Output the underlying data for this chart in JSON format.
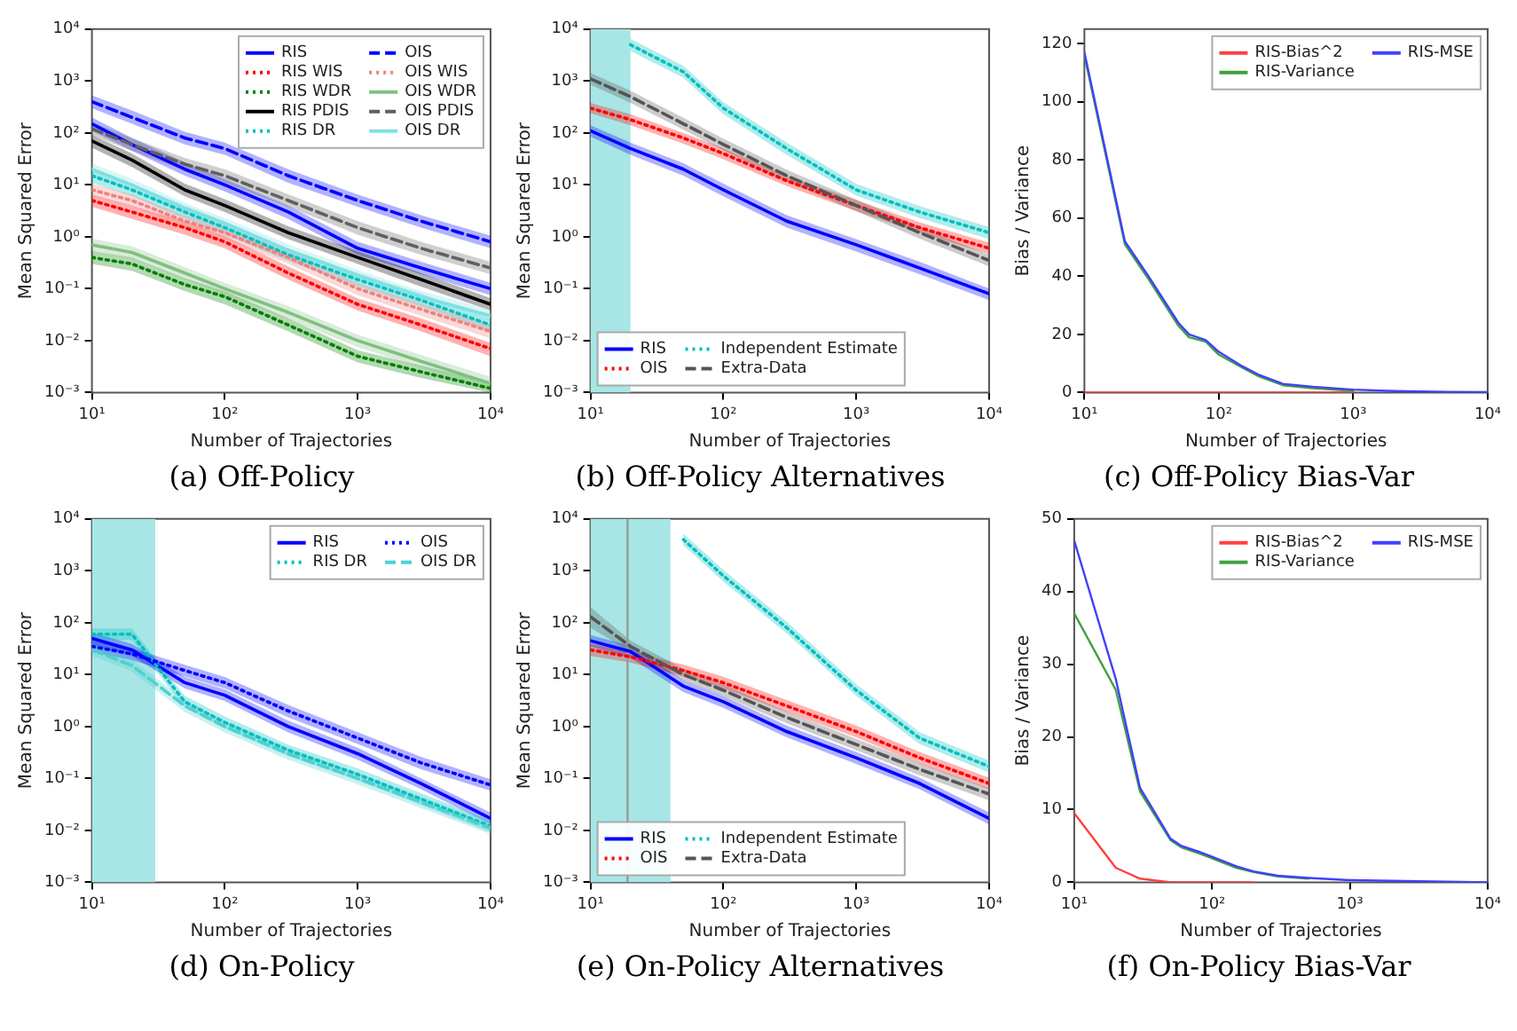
{
  "chart_data": [
    {
      "type": "line",
      "title": "(a) Off-Policy",
      "xlabel": "Number of Trajectories",
      "ylabel": "Mean Squared Error",
      "log": "xy",
      "legend": "top right",
      "xlim": [
        10,
        10000
      ],
      "ylim": [
        0.001,
        10000
      ],
      "xticks": [
        {
          "value": 10,
          "label": "10¹"
        },
        {
          "value": 100,
          "label": "10²"
        },
        {
          "value": 1000,
          "label": "10³"
        },
        {
          "value": 10000,
          "label": "10⁴"
        }
      ],
      "yticks": [
        {
          "value": 0.001,
          "label": "10⁻³"
        },
        {
          "value": 0.01,
          "label": "10⁻²"
        },
        {
          "value": 0.1,
          "label": "10⁻¹"
        },
        {
          "value": 1,
          "label": "10⁰"
        },
        {
          "value": 10,
          "label": "10¹"
        },
        {
          "value": 100,
          "label": "10²"
        },
        {
          "value": 1000,
          "label": "10³"
        },
        {
          "value": 10000,
          "label": "10⁴"
        }
      ],
      "x": [
        10,
        20,
        50,
        100,
        300,
        1000,
        3000,
        10000
      ],
      "series": [
        {
          "name": "RIS",
          "color": "#0000ff",
          "line_style": "solid",
          "values": [
            150,
            60,
            20,
            10,
            3,
            0.6,
            0.25,
            0.1
          ],
          "lower": [
            110,
            45,
            15,
            7.5,
            2.2,
            0.45,
            0.19,
            0.075
          ],
          "upper": [
            200,
            80,
            27,
            13,
            4,
            0.8,
            0.33,
            0.13
          ]
        },
        {
          "name": "RIS WIS",
          "color": "#ff0000",
          "line_style": "dotted",
          "values": [
            5,
            3,
            1.5,
            0.8,
            0.2,
            0.05,
            0.02,
            0.007
          ],
          "lower": [
            3.8,
            2.2,
            1.1,
            0.6,
            0.15,
            0.038,
            0.015,
            0.005
          ],
          "upper": [
            6.5,
            4,
            2,
            1.05,
            0.27,
            0.065,
            0.027,
            0.009
          ]
        },
        {
          "name": "RIS WDR",
          "color": "#008000",
          "line_style": "dotted",
          "values": [
            0.4,
            0.3,
            0.12,
            0.07,
            0.02,
            0.005,
            0.0025,
            0.0012
          ],
          "lower": [
            0.3,
            0.22,
            0.09,
            0.05,
            0.015,
            0.0038,
            0.0019,
            0.001
          ],
          "upper": [
            0.53,
            0.4,
            0.16,
            0.09,
            0.027,
            0.0065,
            0.0033,
            0.0016
          ]
        },
        {
          "name": "RIS PDIS",
          "color": "#000000",
          "line_style": "solid",
          "values": [
            70,
            30,
            8,
            4,
            1.2,
            0.4,
            0.15,
            0.05
          ],
          "lower": [
            52,
            22,
            6,
            3,
            0.9,
            0.3,
            0.11,
            0.038
          ],
          "upper": [
            92,
            40,
            10.5,
            5.3,
            1.6,
            0.53,
            0.2,
            0.066
          ]
        },
        {
          "name": "RIS DR",
          "color": "#00bfbf",
          "line_style": "dotted",
          "values": [
            15,
            8,
            3,
            1.5,
            0.45,
            0.15,
            0.06,
            0.02
          ],
          "lower": [
            11,
            6,
            2.2,
            1.1,
            0.34,
            0.11,
            0.045,
            0.015
          ],
          "upper": [
            20,
            10.5,
            4,
            2,
            0.6,
            0.2,
            0.08,
            0.027
          ]
        },
        {
          "name": "OIS",
          "color": "#0000ff",
          "line_style": "dashed",
          "values": [
            400,
            200,
            80,
            50,
            15,
            5,
            2,
            0.8
          ],
          "lower": [
            300,
            150,
            60,
            38,
            11,
            3.8,
            1.5,
            0.6
          ],
          "upper": [
            530,
            270,
            105,
            65,
            20,
            6.5,
            2.6,
            1.05
          ]
        },
        {
          "name": "OIS WIS",
          "color": "#f08080",
          "line_style": "dotted",
          "values": [
            8,
            5,
            2,
            1.2,
            0.4,
            0.1,
            0.04,
            0.015
          ],
          "lower": [
            6,
            3.8,
            1.5,
            0.9,
            0.3,
            0.075,
            0.03,
            0.011
          ],
          "upper": [
            10.5,
            6.5,
            2.6,
            1.6,
            0.53,
            0.13,
            0.053,
            0.02
          ]
        },
        {
          "name": "OIS WDR",
          "color": "#80c080",
          "line_style": "solid",
          "values": [
            0.7,
            0.5,
            0.2,
            0.1,
            0.035,
            0.01,
            0.004,
            0.0015
          ],
          "lower": [
            0.52,
            0.38,
            0.15,
            0.075,
            0.026,
            0.0075,
            0.003,
            0.0011
          ],
          "upper": [
            0.92,
            0.66,
            0.26,
            0.13,
            0.046,
            0.013,
            0.0053,
            0.002
          ]
        },
        {
          "name": "OIS PDIS",
          "color": "#606060",
          "line_style": "dashed",
          "values": [
            120,
            60,
            25,
            15,
            5,
            1.5,
            0.6,
            0.25
          ],
          "lower": [
            90,
            45,
            19,
            11,
            3.8,
            1.1,
            0.45,
            0.19
          ],
          "upper": [
            160,
            80,
            33,
            20,
            6.6,
            2,
            0.8,
            0.33
          ]
        },
        {
          "name": "OIS DR",
          "color": "#80e0e0",
          "line_style": "solid",
          "values": [
            20,
            10,
            3.5,
            1.8,
            0.55,
            0.18,
            0.07,
            0.03
          ],
          "lower": [
            15,
            7.7,
            2.7,
            1.4,
            0.42,
            0.14,
            0.054,
            0.023
          ],
          "upper": [
            26,
            13,
            4.5,
            2.3,
            0.72,
            0.23,
            0.09,
            0.039
          ]
        }
      ]
    },
    {
      "type": "line",
      "title": "(b) Off-Policy Alternatives",
      "xlabel": "Number of Trajectories",
      "ylabel": "Mean Squared Error",
      "log": "xy",
      "legend": "bottom left",
      "xlim": [
        10,
        10000
      ],
      "ylim": [
        0.001,
        10000
      ],
      "xticks": [
        {
          "value": 10,
          "label": "10¹"
        },
        {
          "value": 100,
          "label": "10²"
        },
        {
          "value": 1000,
          "label": "10³"
        },
        {
          "value": 10000,
          "label": "10⁴"
        }
      ],
      "yticks": [
        {
          "value": 0.001,
          "label": "10⁻³"
        },
        {
          "value": 0.01,
          "label": "10⁻²"
        },
        {
          "value": 0.1,
          "label": "10⁻¹"
        },
        {
          "value": 1,
          "label": "10⁰"
        },
        {
          "value": 10,
          "label": "10¹"
        },
        {
          "value": 100,
          "label": "10²"
        },
        {
          "value": 1000,
          "label": "10³"
        },
        {
          "value": 10000,
          "label": "10⁴"
        }
      ],
      "bands": [
        {
          "axis": "x",
          "from": 10,
          "to": 20,
          "color": "#a8e6e6"
        }
      ],
      "x": [
        10,
        20,
        50,
        100,
        300,
        1000,
        3000,
        10000
      ],
      "series": [
        {
          "name": "RIS",
          "color": "#0000ff",
          "line_style": "solid",
          "values": [
            110,
            50,
            20,
            8,
            2,
            0.7,
            0.25,
            0.08
          ],
          "lower": [
            85,
            38,
            15,
            6,
            1.5,
            0.52,
            0.19,
            0.06
          ],
          "upper": [
            140,
            65,
            26,
            10.5,
            2.6,
            0.9,
            0.33,
            0.1
          ]
        },
        {
          "name": "OIS",
          "color": "#ff0000",
          "line_style": "dotted",
          "values": [
            300,
            180,
            80,
            40,
            12,
            4,
            1.5,
            0.6
          ],
          "lower": [
            240,
            140,
            62,
            31,
            9.5,
            3.1,
            1.2,
            0.46
          ],
          "upper": [
            380,
            230,
            100,
            51,
            15,
            5.1,
            1.9,
            0.77
          ]
        },
        {
          "name": "Independent Estimate",
          "color": "#00bfbf",
          "line_style": "dotted",
          "values": [
            null,
            5000,
            1500,
            300,
            50,
            8,
            3,
            1.2
          ],
          "lower": [
            null,
            3800,
            1150,
            230,
            38,
            6.2,
            2.3,
            0.9
          ],
          "upper": [
            null,
            6500,
            1950,
            390,
            65,
            10.4,
            3.9,
            1.55
          ]
        },
        {
          "name": "Extra-Data",
          "color": "#555555",
          "line_style": "dashed",
          "values": [
            1100,
            500,
            150,
            60,
            15,
            4,
            1.2,
            0.35
          ],
          "lower": [
            850,
            380,
            115,
            46,
            11.5,
            3.1,
            0.92,
            0.27
          ],
          "upper": [
            1430,
            650,
            195,
            78,
            19.5,
            5.2,
            1.56,
            0.45
          ]
        }
      ]
    },
    {
      "type": "line",
      "title": "(c) Off-Policy Bias-Var",
      "xlabel": "Number of Trajectories",
      "ylabel": "Bias / Variance",
      "log": "x",
      "legend": "top right",
      "xlim": [
        10,
        10000
      ],
      "ylim": [
        0,
        125
      ],
      "xticks": [
        {
          "value": 10,
          "label": "10¹"
        },
        {
          "value": 100,
          "label": "10²"
        },
        {
          "value": 1000,
          "label": "10³"
        },
        {
          "value": 10000,
          "label": "10⁴"
        }
      ],
      "yticks": [
        0,
        20,
        40,
        60,
        80,
        100,
        120
      ],
      "x": [
        10,
        20,
        30,
        50,
        60,
        80,
        100,
        150,
        200,
        300,
        500,
        1000,
        2000,
        5000,
        10000
      ],
      "series": [
        {
          "name": "RIS-Bias^2",
          "color": "#ff4040",
          "line_style": "solid",
          "values": [
            0,
            0,
            0,
            0,
            0,
            0,
            0,
            0,
            0,
            0,
            0,
            0,
            null,
            null,
            null
          ]
        },
        {
          "name": "RIS-Variance",
          "color": "#40a040",
          "line_style": "solid",
          "values": [
            116,
            51,
            39,
            23,
            19,
            17.5,
            13,
            8.5,
            5.5,
            2.5,
            1.5,
            0.6,
            null,
            null,
            null
          ]
        },
        {
          "name": "RIS-MSE",
          "color": "#4040ff",
          "line_style": "solid",
          "values": [
            117,
            52,
            40,
            24,
            20,
            18,
            14,
            9,
            6,
            3,
            2,
            1,
            0.5,
            0.2,
            0.1
          ]
        }
      ]
    },
    {
      "type": "line",
      "title": "(d) On-Policy",
      "xlabel": "Number of Trajectories",
      "ylabel": "Mean Squared Error",
      "log": "xy",
      "legend": "top right",
      "xlim": [
        10,
        10000
      ],
      "ylim": [
        0.001,
        10000
      ],
      "xticks": [
        {
          "value": 10,
          "label": "10¹"
        },
        {
          "value": 100,
          "label": "10²"
        },
        {
          "value": 1000,
          "label": "10³"
        },
        {
          "value": 10000,
          "label": "10⁴"
        }
      ],
      "yticks": [
        {
          "value": 0.001,
          "label": "10⁻³"
        },
        {
          "value": 0.01,
          "label": "10⁻²"
        },
        {
          "value": 0.1,
          "label": "10⁻¹"
        },
        {
          "value": 1,
          "label": "10⁰"
        },
        {
          "value": 10,
          "label": "10¹"
        },
        {
          "value": 100,
          "label": "10²"
        },
        {
          "value": 1000,
          "label": "10³"
        },
        {
          "value": 10000,
          "label": "10⁴"
        }
      ],
      "bands": [
        {
          "axis": "x",
          "from": 10,
          "to": 30,
          "color": "#a8e6e6"
        }
      ],
      "x": [
        10,
        20,
        50,
        100,
        300,
        1000,
        3000,
        10000
      ],
      "series": [
        {
          "name": "RIS",
          "color": "#0000ff",
          "line_style": "solid",
          "values": [
            50,
            30,
            7,
            4,
            1,
            0.3,
            0.08,
            0.017
          ],
          "lower": [
            38,
            23,
            5.4,
            3.1,
            0.77,
            0.23,
            0.062,
            0.013
          ],
          "upper": [
            65,
            39,
            9,
            5.2,
            1.3,
            0.39,
            0.1,
            0.022
          ]
        },
        {
          "name": "RIS DR",
          "color": "#00bfbf",
          "line_style": "dotted",
          "values": [
            60,
            60,
            3,
            1.2,
            0.35,
            0.12,
            0.04,
            0.012
          ],
          "lower": [
            46,
            46,
            2.3,
            0.92,
            0.27,
            0.092,
            0.031,
            0.0092
          ],
          "upper": [
            78,
            78,
            3.9,
            1.56,
            0.45,
            0.156,
            0.052,
            0.0156
          ]
        },
        {
          "name": "OIS",
          "color": "#0000ff",
          "line_style": "dotted",
          "values": [
            35,
            25,
            12,
            7,
            2,
            0.6,
            0.2,
            0.075
          ],
          "lower": [
            27,
            19,
            9.2,
            5.4,
            1.5,
            0.46,
            0.15,
            0.058
          ],
          "upper": [
            45,
            32,
            15.5,
            9,
            2.6,
            0.78,
            0.26,
            0.097
          ]
        },
        {
          "name": "OIS DR",
          "color": "#50d0d0",
          "line_style": "dashed",
          "values": [
            30,
            15,
            2.5,
            1,
            0.3,
            0.1,
            0.035,
            0.011
          ],
          "lower": [
            23,
            11.5,
            1.9,
            0.77,
            0.23,
            0.077,
            0.027,
            0.0085
          ],
          "upper": [
            39,
            19.5,
            3.25,
            1.3,
            0.39,
            0.13,
            0.045,
            0.0143
          ]
        }
      ]
    },
    {
      "type": "line",
      "title": "(e) On-Policy Alternatives",
      "xlabel": "Number of Trajectories",
      "ylabel": "Mean Squared Error",
      "log": "xy",
      "legend": "bottom left",
      "xlim": [
        10,
        10000
      ],
      "ylim": [
        0.001,
        10000
      ],
      "xticks": [
        {
          "value": 10,
          "label": "10¹"
        },
        {
          "value": 100,
          "label": "10²"
        },
        {
          "value": 1000,
          "label": "10³"
        },
        {
          "value": 10000,
          "label": "10⁴"
        }
      ],
      "yticks": [
        {
          "value": 0.001,
          "label": "10⁻³"
        },
        {
          "value": 0.01,
          "label": "10⁻²"
        },
        {
          "value": 0.1,
          "label": "10⁻¹"
        },
        {
          "value": 1,
          "label": "10⁰"
        },
        {
          "value": 10,
          "label": "10¹"
        },
        {
          "value": 100,
          "label": "10²"
        },
        {
          "value": 1000,
          "label": "10³"
        },
        {
          "value": 10000,
          "label": "10⁴"
        }
      ],
      "bands": [
        {
          "axis": "x",
          "from": 10,
          "to": 40,
          "color": "#a8e6e6"
        }
      ],
      "ref_lines": [
        {
          "axis": "x",
          "value": 19,
          "color": "#999999"
        }
      ],
      "x": [
        10,
        20,
        50,
        100,
        300,
        1000,
        3000,
        10000
      ],
      "series": [
        {
          "name": "RIS",
          "color": "#0000ff",
          "line_style": "solid",
          "values": [
            45,
            28,
            6,
            3,
            0.8,
            0.25,
            0.08,
            0.017
          ],
          "lower": [
            35,
            21,
            4.6,
            2.3,
            0.62,
            0.19,
            0.062,
            0.013
          ],
          "upper": [
            58,
            36,
            7.8,
            3.9,
            1.04,
            0.325,
            0.104,
            0.022
          ]
        },
        {
          "name": "OIS",
          "color": "#ff0000",
          "line_style": "dotted",
          "values": [
            30,
            22,
            12,
            7,
            2.5,
            0.8,
            0.25,
            0.08
          ],
          "lower": [
            23,
            17,
            9.2,
            5.4,
            1.9,
            0.62,
            0.19,
            0.062
          ],
          "upper": [
            39,
            28.6,
            15.6,
            9.1,
            3.25,
            1.04,
            0.325,
            0.104
          ]
        },
        {
          "name": "Independent Estimate",
          "color": "#00bfbf",
          "line_style": "dotted",
          "values": [
            null,
            null,
            4000,
            800,
            80,
            5,
            0.6,
            0.17
          ],
          "lower": [
            null,
            null,
            3100,
            620,
            62,
            3.9,
            0.46,
            0.13
          ],
          "upper": [
            null,
            null,
            5200,
            1040,
            104,
            6.5,
            0.78,
            0.22
          ]
        },
        {
          "name": "Extra-Data",
          "color": "#555555",
          "line_style": "dashed",
          "values": [
            130,
            35,
            10,
            5,
            1.5,
            0.45,
            0.15,
            0.05
          ],
          "lower": [
            80,
            27,
            7.7,
            3.9,
            1.15,
            0.35,
            0.115,
            0.038
          ],
          "upper": [
            200,
            45,
            13,
            6.5,
            1.95,
            0.58,
            0.195,
            0.065
          ]
        }
      ]
    },
    {
      "type": "line",
      "title": "(f) On-Policy Bias-Var",
      "xlabel": "Number of Trajectories",
      "ylabel": "Bias / Variance",
      "log": "x",
      "legend": "top right",
      "xlim": [
        10,
        10000
      ],
      "ylim": [
        0,
        50
      ],
      "xticks": [
        {
          "value": 10,
          "label": "10¹"
        },
        {
          "value": 100,
          "label": "10²"
        },
        {
          "value": 1000,
          "label": "10³"
        },
        {
          "value": 10000,
          "label": "10⁴"
        }
      ],
      "yticks": [
        0,
        10,
        20,
        30,
        40,
        50
      ],
      "x": [
        10,
        20,
        30,
        50,
        60,
        80,
        100,
        150,
        200,
        300,
        500,
        1000,
        2000,
        5000,
        10000
      ],
      "series": [
        {
          "name": "RIS-Bias^2",
          "color": "#ff4040",
          "line_style": "solid",
          "values": [
            9.5,
            2,
            0.5,
            0,
            0,
            0,
            0,
            0,
            0,
            null,
            null,
            null,
            null,
            null,
            null
          ]
        },
        {
          "name": "RIS-Variance",
          "color": "#40a040",
          "line_style": "solid",
          "values": [
            37,
            26.5,
            12.5,
            5.8,
            4.8,
            4,
            3.3,
            2,
            1.4,
            0.8,
            0.5,
            null,
            null,
            null,
            null
          ]
        },
        {
          "name": "RIS-MSE",
          "color": "#4040ff",
          "line_style": "solid",
          "values": [
            47,
            28,
            13,
            6,
            5,
            4.2,
            3.5,
            2.2,
            1.5,
            0.9,
            0.6,
            0.3,
            0.2,
            0.1,
            0
          ]
        }
      ]
    }
  ]
}
